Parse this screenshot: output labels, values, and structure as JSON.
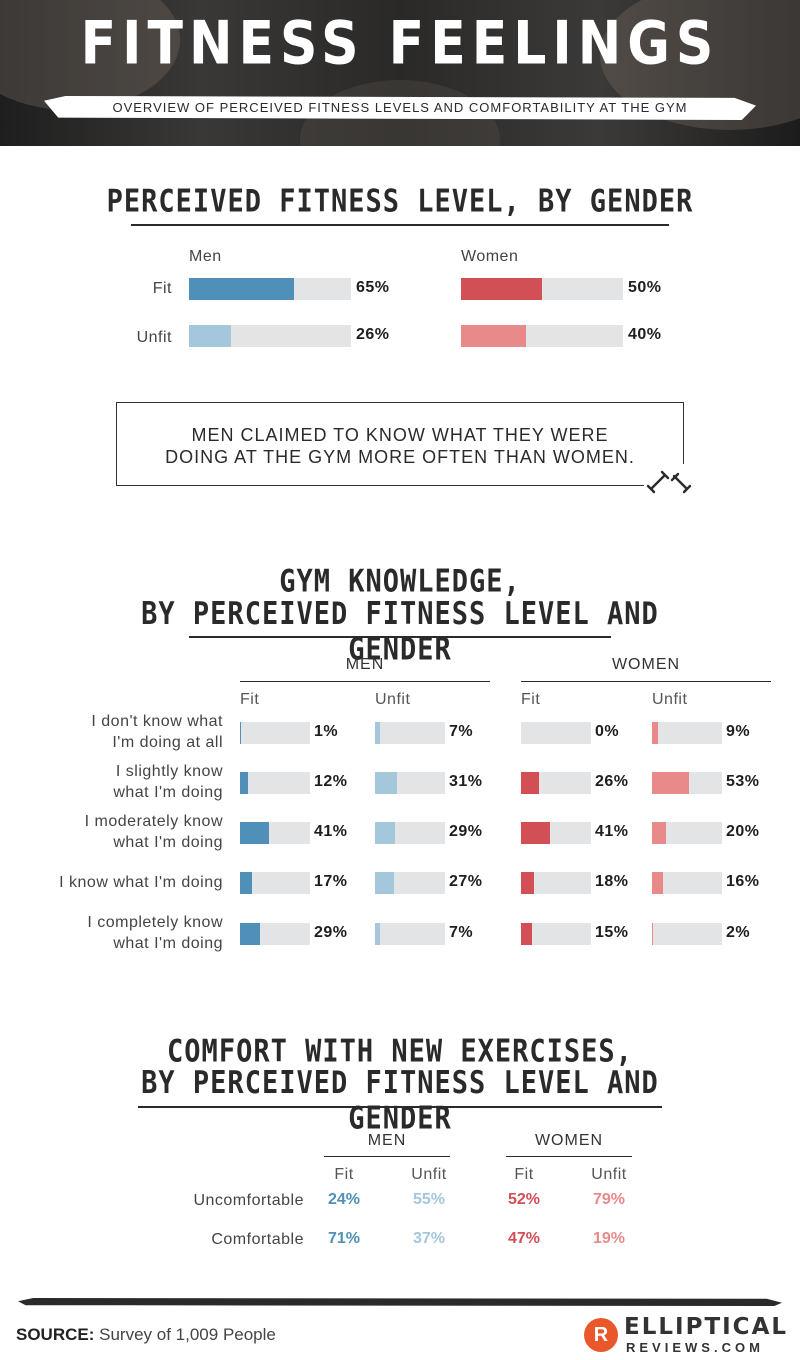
{
  "header": {
    "title": "FITNESS FEELINGS",
    "subtitle": "OVERVIEW OF PERCEIVED FITNESS LEVELS AND COMFORTABILITY AT THE GYM"
  },
  "colors": {
    "men_fit": "#4f8fb8",
    "men_unfit": "#a4c7dc",
    "women_fit": "#d24f55",
    "women_unfit": "#e98a8a",
    "track": "#e3e4e6"
  },
  "callout": {
    "line1": "MEN CLAIMED TO KNOW WHAT THEY WERE",
    "line2": "DOING AT THE GYM MORE OFTEN THAN WOMEN.",
    "icon": "dumbbell-icon"
  },
  "chart_data": [
    {
      "type": "bar",
      "title": "PERCEIVED FITNESS LEVEL, BY GENDER",
      "categories": [
        "Fit",
        "Unfit"
      ],
      "series": [
        {
          "name": "Men",
          "values": [
            65,
            26
          ],
          "labels": [
            "65%",
            "26%"
          ]
        },
        {
          "name": "Women",
          "values": [
            50,
            40
          ],
          "labels": [
            "50%",
            "40%"
          ]
        }
      ],
      "ylim": [
        0,
        100
      ]
    },
    {
      "type": "bar",
      "title_line1": "GYM KNOWLEDGE,",
      "title_line2": "BY PERCEIVED FITNESS LEVEL AND GENDER",
      "groups": [
        "MEN",
        "WOMEN"
      ],
      "subgroups": [
        "Fit",
        "Unfit"
      ],
      "categories": [
        [
          "I don't know what",
          "I'm doing at all"
        ],
        [
          "I slightly know",
          "what I'm doing"
        ],
        [
          "I moderately know",
          "what I'm doing"
        ],
        [
          "I know what I'm doing"
        ],
        [
          "I completely know",
          "what I'm doing"
        ]
      ],
      "series": [
        {
          "name": "Fit",
          "group": "MEN",
          "values": [
            1,
            12,
            41,
            17,
            29
          ],
          "labels": [
            "1%",
            "12%",
            "41%",
            "17%",
            "29%"
          ]
        },
        {
          "name": "Unfit",
          "group": "MEN",
          "values": [
            7,
            31,
            29,
            27,
            7
          ],
          "labels": [
            "7%",
            "31%",
            "29%",
            "27%",
            "7%"
          ]
        },
        {
          "name": "Fit",
          "group": "WOMEN",
          "values": [
            0,
            26,
            41,
            18,
            15
          ],
          "labels": [
            "0%",
            "26%",
            "41%",
            "18%",
            "15%"
          ]
        },
        {
          "name": "Unfit",
          "group": "WOMEN",
          "values": [
            9,
            53,
            20,
            16,
            2
          ],
          "labels": [
            "9%",
            "53%",
            "20%",
            "16%",
            "2%"
          ]
        }
      ],
      "ylim": [
        0,
        100
      ]
    },
    {
      "type": "table",
      "title_line1": "COMFORT WITH NEW EXERCISES,",
      "title_line2": "BY PERCEIVED FITNESS LEVEL AND GENDER",
      "groups": [
        "MEN",
        "WOMEN"
      ],
      "subgroups": [
        "Fit",
        "Unfit"
      ],
      "rows": [
        {
          "label": "Uncomfortable",
          "values": [
            "24%",
            "55%",
            "52%",
            "79%"
          ]
        },
        {
          "label": "Comfortable",
          "values": [
            "71%",
            "37%",
            "47%",
            "19%"
          ]
        }
      ]
    }
  ],
  "footer": {
    "source_label": "SOURCE:",
    "source_text": "Survey of 1,009 People",
    "logo_letter": "R",
    "logo_top": "ELLIPTICAL",
    "logo_bottom": "REVIEWS.COM"
  }
}
